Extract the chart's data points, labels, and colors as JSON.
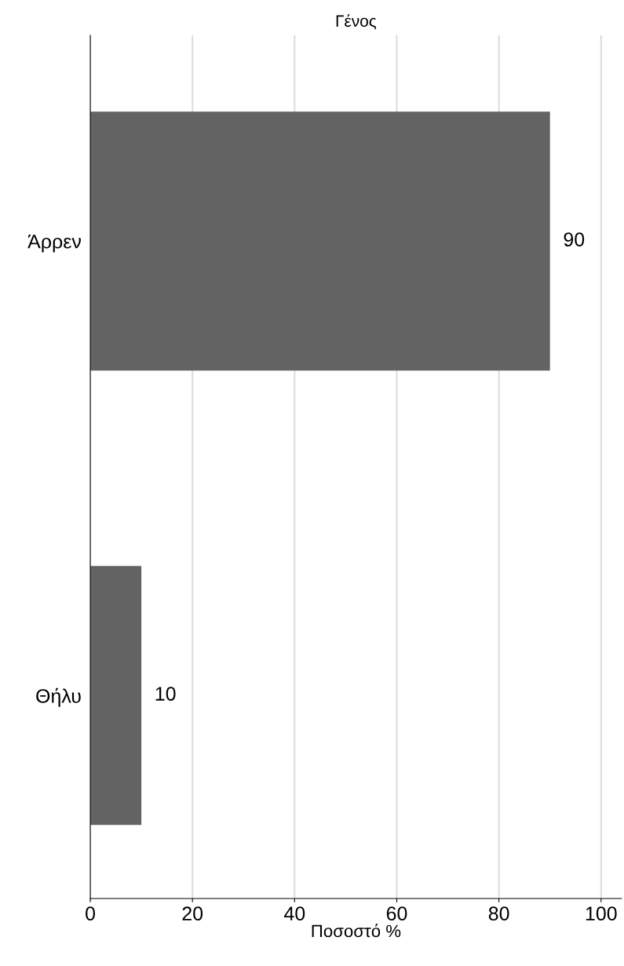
{
  "chart_data": {
    "type": "bar",
    "orientation": "horizontal",
    "title": "Γένος",
    "xlabel": "Ποσοστό %",
    "categories": [
      "Άρρεν",
      "Θήλυ"
    ],
    "values": [
      90,
      10
    ],
    "color": "#636363",
    "data_labels": true,
    "xlim": [
      0,
      104
    ],
    "xticks": [
      0,
      20,
      40,
      60,
      80,
      100
    ],
    "grid": "x"
  }
}
